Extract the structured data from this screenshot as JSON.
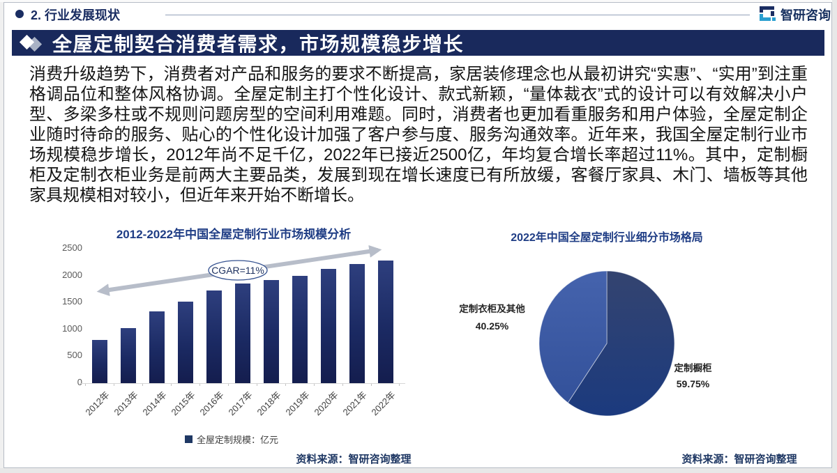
{
  "header": {
    "section_label": "2. 行业发展现状",
    "logo_text": "智研咨询",
    "colors": {
      "navy": "#1a2d62",
      "teal": "#2a9fd0",
      "line": "#93a0ba"
    }
  },
  "banner": {
    "title": "全屋定制契合消费者需求，市场规模稳步增长",
    "bg_color": "#19295c"
  },
  "paragraph": "消费升级趋势下，消费者对产品和服务的要求不断提高，家居装修理念也从最初讲究“实惠”、“实用”到注重格调品位和整体风格协调。全屋定制主打个性化设计、款式新颖，“量体裁衣”式的设计可以有效解决小户型、多梁多柱或不规则问题房型的空间利用难题。同时，消费者也更加看重服务和用户体验，全屋定制企业随时待命的服务、贴心的个性化设计加强了客户参与度、服务沟通效率。近年来，我国全屋定制行业市场规模稳步增长，2012年尚不足千亿，2022年已接近2500亿，年均复合增长率超过11%。其中，定制橱柜及定制衣柜业务是前两大主要品类，发展到现在增长速度已有所放缓，客餐厅家具、木门、墙板等其他家具规模相对较小，但近年来开始不断增长。",
  "chart_data": [
    {
      "type": "bar",
      "title": "2012-2022年中国全屋定制行业市场规模分析",
      "categories": [
        "2012年",
        "2013年",
        "2014年",
        "2015年",
        "2016年",
        "2017年",
        "2018年",
        "2019年",
        "2020年",
        "2021年",
        "2022年"
      ],
      "values": [
        800,
        1020,
        1330,
        1510,
        1720,
        1850,
        1920,
        1990,
        2130,
        2210,
        2280
      ],
      "ylim": [
        0,
        2500
      ],
      "yticks": [
        0,
        500,
        1000,
        1500,
        2000,
        2500
      ],
      "xlabel": "",
      "ylabel": "",
      "grid": false,
      "legend_position": "bottom",
      "legend_label": "全屋定制规模：亿元",
      "legend_swatch_color": "#1f3864",
      "annotation": "CGAR=11%",
      "bar_color_top": "#2e3f7e",
      "bar_color_mid": "#1b2a63",
      "bar_color_bottom": "#141d4e",
      "arrow_color": "#b7bdc9",
      "source": "资料来源：智研咨询整理"
    },
    {
      "type": "pie",
      "title": "2022年中国全屋定制行业细分市场格局",
      "slices": [
        {
          "label": "定制橱柜",
          "value": 59.75,
          "pct_label": "59.75%",
          "color_top": "#344470",
          "color_bottom": "#1b3a7e"
        },
        {
          "label": "定制衣柜及其他",
          "value": 40.25,
          "pct_label": "40.25%",
          "color_top": "#4563ad",
          "color_bottom": "#33519a"
        }
      ],
      "start_angle_deg": 0,
      "direction": "clockwise",
      "source": "资料来源：智研咨询整理"
    }
  ]
}
